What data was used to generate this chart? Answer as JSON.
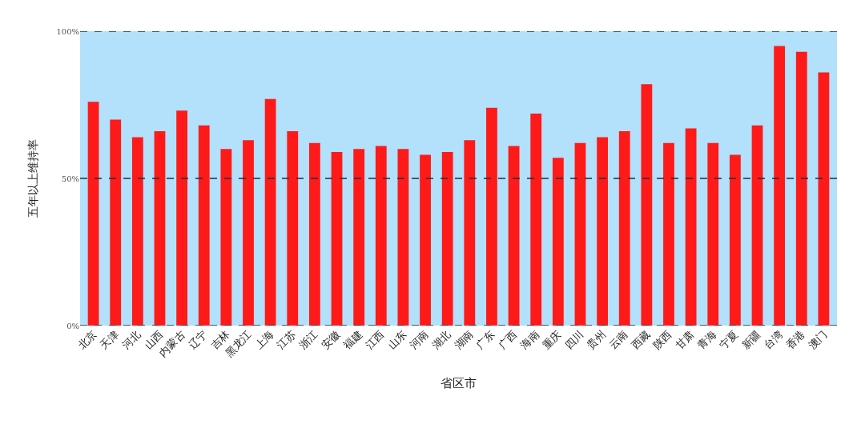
{
  "chart_data": {
    "type": "bar",
    "xlabel": "省区市",
    "ylabel": "五年以上维持率",
    "categories": [
      "北京",
      "天津",
      "河北",
      "山西",
      "内蒙古",
      "辽宁",
      "吉林",
      "黑龙江",
      "上海",
      "江苏",
      "浙江",
      "安徽",
      "福建",
      "江西",
      "山东",
      "河南",
      "湖北",
      "湖南",
      "广东",
      "广西",
      "海南",
      "重庆",
      "四川",
      "贵州",
      "云南",
      "西藏",
      "陕西",
      "甘肃",
      "青海",
      "宁夏",
      "新疆",
      "台湾",
      "香港",
      "澳门"
    ],
    "values": [
      76,
      70,
      64,
      66,
      73,
      68,
      60,
      63,
      77,
      66,
      62,
      59,
      60,
      61,
      60,
      58,
      59,
      63,
      74,
      61,
      72,
      57,
      62,
      64,
      66,
      82,
      62,
      67,
      62,
      58,
      68,
      95,
      93,
      86
    ],
    "color": "#ff1a1a",
    "ylim": [
      0,
      100
    ],
    "yticks": [
      {
        "value": 0,
        "label": "0%"
      },
      {
        "value": 50,
        "label": "50%"
      },
      {
        "value": 100,
        "label": "100%"
      }
    ],
    "grid": "y"
  }
}
